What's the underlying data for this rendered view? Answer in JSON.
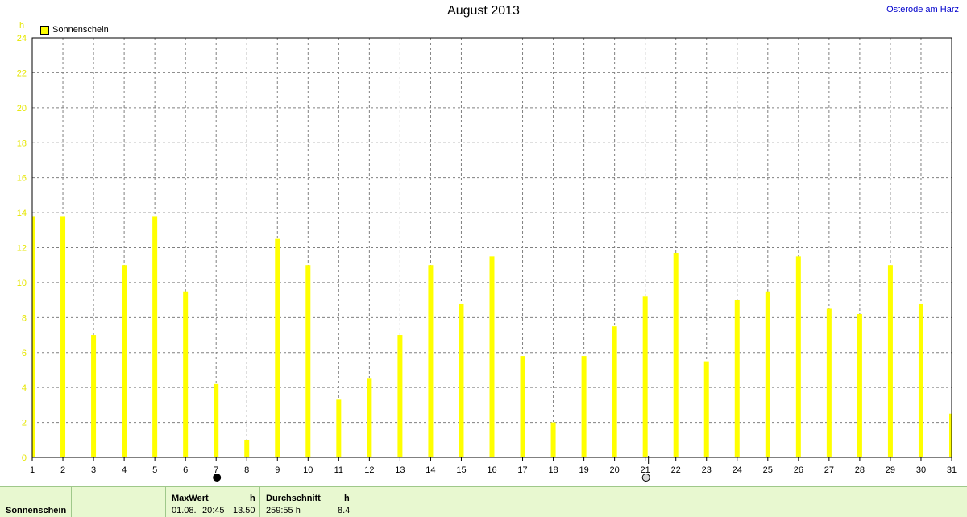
{
  "station": "Osterode am Harz",
  "chart_data": {
    "type": "bar",
    "title": "August 2013",
    "ylabel": "h",
    "ylim": [
      0,
      24
    ],
    "yticks": [
      0,
      2,
      4,
      6,
      8,
      10,
      12,
      14,
      16,
      18,
      20,
      22,
      24
    ],
    "categories": [
      "1",
      "2",
      "3",
      "4",
      "5",
      "6",
      "7",
      "8",
      "9",
      "10",
      "11",
      "12",
      "13",
      "14",
      "15",
      "16",
      "17",
      "18",
      "19",
      "20",
      "21",
      "22",
      "23",
      "24",
      "25",
      "26",
      "27",
      "28",
      "29",
      "30",
      "31"
    ],
    "series": [
      {
        "name": "Sonnenschein",
        "color": "#ffff00",
        "values": [
          13.8,
          13.8,
          7.0,
          11.0,
          13.8,
          9.5,
          4.2,
          1.0,
          12.5,
          11.0,
          3.3,
          4.5,
          7.0,
          11.0,
          8.8,
          11.5,
          5.8,
          2.0,
          5.8,
          7.5,
          9.2,
          11.7,
          5.5,
          9.0,
          9.5,
          11.5,
          8.5,
          8.2,
          11.0,
          8.8,
          2.5
        ]
      }
    ],
    "grid": true,
    "legend": "top-left",
    "moon_markers": [
      {
        "day": 7,
        "phase": "new-moon"
      },
      {
        "day": 21,
        "phase": "full-moon"
      }
    ]
  },
  "panel": {
    "row_label": "Sonnenschein",
    "max_header": "MaxWert",
    "max_unit": "h",
    "max_date": "01.08.",
    "max_time": "20:45",
    "max_value": "13.50",
    "avg_header": "Durchschnitt",
    "avg_unit": "h",
    "avg_total": "259:55 h",
    "avg_value": "8.4"
  }
}
